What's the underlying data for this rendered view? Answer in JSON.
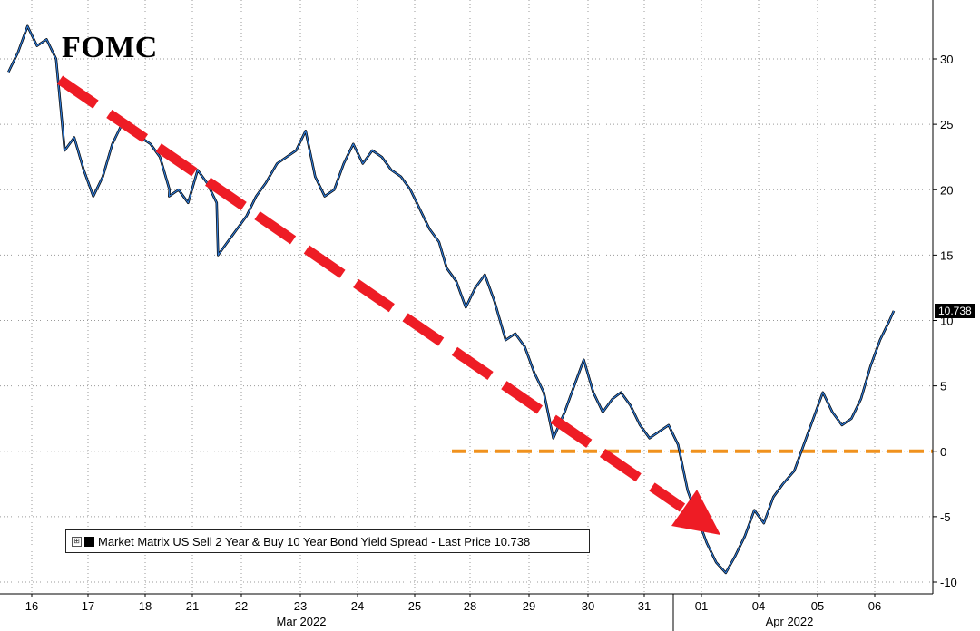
{
  "annotation": {
    "fomc_label": "FOMC"
  },
  "legend": {
    "expander": "⊞",
    "text": "Market Matrix US Sell 2 Year & Buy 10 Year Bond Yield Spread - Last Price 10.738"
  },
  "last_price_tag": "10.738",
  "colors": {
    "line_black": "#000000",
    "line_blue": "#2f7ad6",
    "trend_arrow": "#ee1c25",
    "zero_line": "#f0921e",
    "grid": "#9a9a9a"
  },
  "chart_data": {
    "type": "line",
    "title": "",
    "xlabel": "",
    "ylabel": "",
    "ylim": [
      -10,
      33
    ],
    "y_ticks": [
      "30",
      "25",
      "20",
      "15",
      "10",
      "5",
      "0",
      "-5",
      "-10"
    ],
    "y_tick_values": [
      30,
      25,
      20,
      15,
      10,
      5,
      0,
      -5,
      -10
    ],
    "x_ticks": [
      "16",
      "17",
      "18",
      "21",
      "22",
      "23",
      "24",
      "25",
      "28",
      "29",
      "30",
      "31",
      "01",
      "04",
      "05",
      "06"
    ],
    "month_labels": [
      "Mar 2022",
      "Apr 2022"
    ],
    "legend_position": "bottom-left",
    "grid": true,
    "series": [
      {
        "name": "Market Matrix US Sell 2 Year & Buy 10 Year Bond Yield Spread",
        "last_price": 10.738,
        "points": [
          [
            "16",
            29.0
          ],
          [
            "16",
            30.5
          ],
          [
            "16",
            32.5
          ],
          [
            "16",
            31.0
          ],
          [
            "16",
            31.5
          ],
          [
            "16",
            30.0
          ],
          [
            "17",
            23.0
          ],
          [
            "17",
            24.0
          ],
          [
            "17",
            21.5
          ],
          [
            "17",
            19.5
          ],
          [
            "17",
            21.0
          ],
          [
            "17",
            23.5
          ],
          [
            "18",
            25.0
          ],
          [
            "18",
            24.5
          ],
          [
            "18",
            24.0
          ],
          [
            "18",
            23.5
          ],
          [
            "18",
            22.5
          ],
          [
            "18",
            20.0
          ],
          [
            "21",
            19.5
          ],
          [
            "21",
            20.0
          ],
          [
            "21",
            19.0
          ],
          [
            "21",
            21.5
          ],
          [
            "21",
            20.5
          ],
          [
            "21",
            19.0
          ],
          [
            "22",
            15.0
          ],
          [
            "22",
            16.0
          ],
          [
            "22",
            17.0
          ],
          [
            "22",
            18.0
          ],
          [
            "22",
            19.5
          ],
          [
            "22",
            20.5
          ],
          [
            "23",
            22.0
          ],
          [
            "23",
            22.5
          ],
          [
            "23",
            23.0
          ],
          [
            "23",
            24.5
          ],
          [
            "23",
            21.0
          ],
          [
            "23",
            19.5
          ],
          [
            "24",
            20.0
          ],
          [
            "24",
            22.0
          ],
          [
            "24",
            23.5
          ],
          [
            "24",
            22.0
          ],
          [
            "24",
            23.0
          ],
          [
            "24",
            22.5
          ],
          [
            "25",
            21.5
          ],
          [
            "25",
            21.0
          ],
          [
            "25",
            20.0
          ],
          [
            "25",
            18.5
          ],
          [
            "25",
            17.0
          ],
          [
            "25",
            16.0
          ],
          [
            "28",
            14.0
          ],
          [
            "28",
            13.0
          ],
          [
            "28",
            11.0
          ],
          [
            "28",
            12.5
          ],
          [
            "28",
            13.5
          ],
          [
            "28",
            11.5
          ],
          [
            "29",
            8.5
          ],
          [
            "29",
            9.0
          ],
          [
            "29",
            8.0
          ],
          [
            "29",
            6.0
          ],
          [
            "29",
            4.5
          ],
          [
            "29",
            1.0
          ],
          [
            "30",
            3.0
          ],
          [
            "30",
            5.0
          ],
          [
            "30",
            7.0
          ],
          [
            "30",
            4.5
          ],
          [
            "30",
            3.0
          ],
          [
            "30",
            4.0
          ],
          [
            "31",
            4.5
          ],
          [
            "31",
            3.5
          ],
          [
            "31",
            2.0
          ],
          [
            "31",
            1.0
          ],
          [
            "31",
            1.5
          ],
          [
            "31",
            2.0
          ],
          [
            "01",
            0.5
          ],
          [
            "01",
            -3.0
          ],
          [
            "01",
            -5.0
          ],
          [
            "01",
            -7.0
          ],
          [
            "01",
            -8.5
          ],
          [
            "01",
            -9.3
          ],
          [
            "04",
            -8.0
          ],
          [
            "04",
            -6.5
          ],
          [
            "04",
            -4.5
          ],
          [
            "04",
            -5.5
          ],
          [
            "04",
            -3.5
          ],
          [
            "04",
            -2.5
          ],
          [
            "05",
            -1.5
          ],
          [
            "05",
            0.5
          ],
          [
            "05",
            2.5
          ],
          [
            "05",
            4.5
          ],
          [
            "05",
            3.0
          ],
          [
            "05",
            2.0
          ],
          [
            "06",
            2.5
          ],
          [
            "06",
            4.0
          ],
          [
            "06",
            6.5
          ],
          [
            "06",
            8.5
          ],
          [
            "06",
            10.0
          ],
          [
            "06",
            10.738
          ]
        ]
      }
    ]
  }
}
